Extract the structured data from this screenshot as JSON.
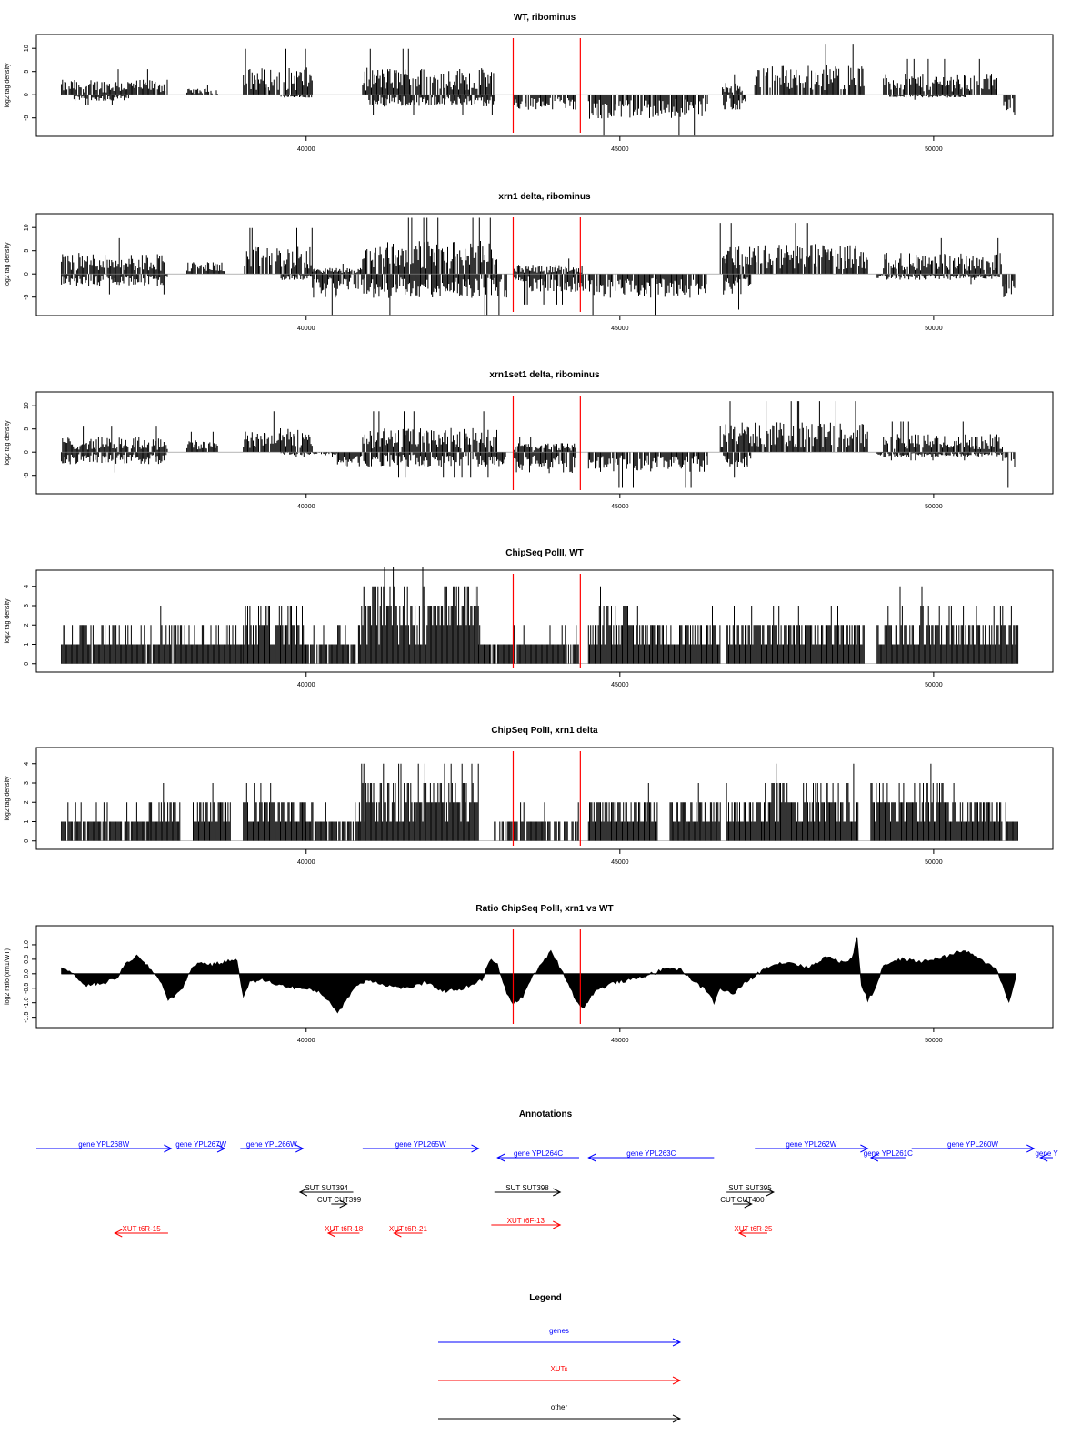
{
  "chart_data": [
    {
      "type": "bar",
      "title": "WT, ribominus",
      "xlabel": "",
      "ylabel": "log2 tag density",
      "xlim": [
        35700,
        51900
      ],
      "ylim": [
        -8,
        12
      ],
      "yticks": [
        -5,
        0,
        5,
        10
      ],
      "xticks": [
        40000,
        45000,
        50000
      ],
      "marker_x": [
        43300,
        44370
      ],
      "series": [
        {
          "name": "plus",
          "segments": [
            {
              "x": [
                36100,
                37800
              ],
              "level": 2.5
            },
            {
              "x": [
                38100,
                38600
              ],
              "level": 1.0
            },
            {
              "x": [
                39000,
                40100
              ],
              "level": 4.5
            },
            {
              "x": [
                40900,
                43000
              ],
              "level": 4.5
            },
            {
              "x": [
                46600,
                46950
              ],
              "level": 2.0
            },
            {
              "x": [
                47150,
                48900
              ],
              "level": 5.0
            },
            {
              "x": [
                49200,
                51050
              ],
              "level": 3.5
            }
          ]
        },
        {
          "name": "minus",
          "segments": [
            {
              "x": [
                36300,
                37200
              ],
              "level": -1.0
            },
            {
              "x": [
                39600,
                40100
              ],
              "level": -0.5
            },
            {
              "x": [
                41000,
                43000
              ],
              "level": -2.0
            },
            {
              "x": [
                43300,
                44300
              ],
              "level": -2.5
            },
            {
              "x": [
                44500,
                46400
              ],
              "level": -4.0
            },
            {
              "x": [
                46650,
                47000
              ],
              "level": -2.5
            },
            {
              "x": [
                49300,
                50500
              ],
              "level": -0.5
            },
            {
              "x": [
                51100,
                51300
              ],
              "level": -3.5
            }
          ]
        }
      ]
    },
    {
      "type": "bar",
      "title": "xrn1 delta, ribominus",
      "xlabel": "",
      "ylabel": "log2 tag density",
      "xlim": [
        35700,
        51900
      ],
      "ylim": [
        -8,
        12
      ],
      "yticks": [
        -5,
        0,
        5,
        10
      ],
      "xticks": [
        40000,
        45000,
        50000
      ],
      "marker_x": [
        43300,
        44370
      ],
      "series": [
        {
          "name": "plus",
          "segments": [
            {
              "x": [
                36100,
                37750
              ],
              "level": 3.5
            },
            {
              "x": [
                38100,
                38700
              ],
              "level": 2.0
            },
            {
              "x": [
                39000,
                40100
              ],
              "level": 4.5
            },
            {
              "x": [
                40100,
                40900
              ],
              "level": 1.0
            },
            {
              "x": [
                40900,
                43050
              ],
              "level": 5.5
            },
            {
              "x": [
                43300,
                44400
              ],
              "level": 1.5
            },
            {
              "x": [
                46600,
                48950
              ],
              "level": 5.0
            },
            {
              "x": [
                49200,
                51100
              ],
              "level": 3.5
            }
          ]
        },
        {
          "name": "minus",
          "segments": [
            {
              "x": [
                36100,
                37800
              ],
              "level": -2.0
            },
            {
              "x": [
                39600,
                40100
              ],
              "level": -1.0
            },
            {
              "x": [
                40100,
                43200
              ],
              "level": -4.0
            },
            {
              "x": [
                43300,
                44450
              ],
              "level": -3.0
            },
            {
              "x": [
                44500,
                46400
              ],
              "level": -4.0
            },
            {
              "x": [
                46650,
                47100
              ],
              "level": -3.5
            },
            {
              "x": [
                49100,
                51050
              ],
              "level": -1.0
            },
            {
              "x": [
                51100,
                51300
              ],
              "level": -4.0
            }
          ]
        }
      ]
    },
    {
      "type": "bar",
      "title": "xrn1set1 delta, ribominus",
      "xlabel": "",
      "ylabel": "log2 tag density",
      "xlim": [
        35700,
        51900
      ],
      "ylim": [
        -8,
        12
      ],
      "yticks": [
        -5,
        0,
        5,
        10
      ],
      "xticks": [
        40000,
        45000,
        50000
      ],
      "marker_x": [
        43300,
        44370
      ],
      "series": [
        {
          "name": "plus",
          "segments": [
            {
              "x": [
                36100,
                37800
              ],
              "level": 2.5
            },
            {
              "x": [
                38100,
                38600
              ],
              "level": 2.0
            },
            {
              "x": [
                39000,
                40100
              ],
              "level": 4.0
            },
            {
              "x": [
                40900,
                43050
              ],
              "level": 4.0
            },
            {
              "x": [
                43300,
                44300
              ],
              "level": 1.5
            },
            {
              "x": [
                46600,
                48950
              ],
              "level": 5.0
            },
            {
              "x": [
                49200,
                51100
              ],
              "level": 3.0
            }
          ]
        },
        {
          "name": "minus",
          "segments": [
            {
              "x": [
                36100,
                37800
              ],
              "level": -2.0
            },
            {
              "x": [
                39600,
                40500
              ],
              "level": -0.5
            },
            {
              "x": [
                40500,
                43200
              ],
              "level": -2.5
            },
            {
              "x": [
                43300,
                44300
              ],
              "level": -3.5
            },
            {
              "x": [
                44500,
                46400
              ],
              "level": -3.5
            },
            {
              "x": [
                46650,
                47100
              ],
              "level": -2.5
            },
            {
              "x": [
                49100,
                51100
              ],
              "level": -0.8
            },
            {
              "x": [
                51100,
                51300
              ],
              "level": -3.5
            }
          ]
        }
      ]
    },
    {
      "type": "bar",
      "title": "ChipSeq PolII, WT",
      "xlabel": "",
      "ylabel": "log2 tag density",
      "xlim": [
        35700,
        51900
      ],
      "ylim": [
        -0.2,
        4.6
      ],
      "yticks": [
        0,
        1,
        2,
        3,
        4
      ],
      "xticks": [
        40000,
        45000,
        50000
      ],
      "marker_x": [
        43300,
        44370
      ],
      "series": [
        {
          "name": "signal",
          "segments": [
            {
              "x": [
                36100,
                39000
              ],
              "level": 1.4
            },
            {
              "x": [
                39000,
                40000
              ],
              "level": 2.3
            },
            {
              "x": [
                40000,
                40850
              ],
              "level": 1.0
            },
            {
              "x": [
                40850,
                42750
              ],
              "level": 3.4
            },
            {
              "x": [
                42750,
                43000
              ],
              "level": 1.2
            },
            {
              "x": [
                43000,
                44350
              ],
              "level": 1.2
            },
            {
              "x": [
                44500,
                45500
              ],
              "level": 2.3
            },
            {
              "x": [
                45500,
                46600
              ],
              "level": 1.8
            },
            {
              "x": [
                46700,
                48900
              ],
              "level": 2.0
            },
            {
              "x": [
                49100,
                51350
              ],
              "level": 2.1
            }
          ]
        }
      ]
    },
    {
      "type": "bar",
      "title": "ChipSeq PolII, xrn1 delta",
      "xlabel": "",
      "ylabel": "log2 tag density",
      "xlim": [
        35700,
        51900
      ],
      "ylim": [
        -0.2,
        4.6
      ],
      "yticks": [
        0,
        1,
        2,
        3,
        4
      ],
      "xticks": [
        40000,
        45000,
        50000
      ],
      "marker_x": [
        43300,
        44370
      ],
      "series": [
        {
          "name": "signal",
          "segments": [
            {
              "x": [
                36100,
                37500
              ],
              "level": 1.0
            },
            {
              "x": [
                37500,
                38000
              ],
              "level": 1.6
            },
            {
              "x": [
                38200,
                38800
              ],
              "level": 1.7
            },
            {
              "x": [
                39000,
                40000
              ],
              "level": 2.0
            },
            {
              "x": [
                40000,
                40850
              ],
              "level": 1.0
            },
            {
              "x": [
                40850,
                42750
              ],
              "level": 3.0
            },
            {
              "x": [
                43000,
                44350
              ],
              "level": 0.7
            },
            {
              "x": [
                44500,
                45600
              ],
              "level": 2.0
            },
            {
              "x": [
                45800,
                46600
              ],
              "level": 2.0
            },
            {
              "x": [
                46700,
                47300
              ],
              "level": 1.6
            },
            {
              "x": [
                47300,
                48800
              ],
              "level": 2.3
            },
            {
              "x": [
                49000,
                50200
              ],
              "level": 2.4
            },
            {
              "x": [
                50200,
                51100
              ],
              "level": 1.8
            },
            {
              "x": [
                51150,
                51350
              ],
              "level": 1.2
            }
          ]
        }
      ]
    },
    {
      "type": "area",
      "title": "Ratio ChipSeq PolII, xrn1 vs WT",
      "xlabel": "",
      "ylabel": "log2 ratio (xrn1/WT)",
      "xlim": [
        35700,
        51900
      ],
      "ylim": [
        -1.7,
        1.5
      ],
      "yticks": [
        -1.5,
        -1.0,
        -0.5,
        0.0,
        0.5,
        1.0
      ],
      "ytick_labels": [
        "-1.5",
        "-1.0",
        "-0.5",
        "0.0",
        "0.5",
        "1.0"
      ],
      "xticks": [
        40000,
        45000,
        50000
      ],
      "marker_x": [
        43300,
        44370
      ],
      "series": [
        {
          "name": "ratio",
          "x": [
            36100,
            36200,
            36500,
            36800,
            37000,
            37150,
            37300,
            37500,
            37700,
            37800,
            38000,
            38150,
            38300,
            38500,
            38700,
            38900,
            39000,
            39100,
            39300,
            39600,
            39900,
            40200,
            40400,
            40500,
            40600,
            40800,
            41000,
            41300,
            41600,
            41900,
            42200,
            42500,
            42800,
            42950,
            43050,
            43200,
            43300,
            43450,
            43600,
            43750,
            43900,
            44000,
            44150,
            44300,
            44400,
            44600,
            44900,
            45200,
            45500,
            45800,
            46000,
            46200,
            46400,
            46500,
            46600,
            46800,
            47000,
            47200,
            47400,
            47700,
            48000,
            48300,
            48500,
            48700,
            48780,
            48850,
            48950,
            49050,
            49200,
            49500,
            49800,
            50200,
            50500,
            50800,
            51000,
            51100,
            51200,
            51300
          ],
          "y": [
            0.2,
            0.1,
            -0.4,
            -0.3,
            -0.1,
            0.4,
            0.6,
            0.2,
            -0.3,
            -0.9,
            -0.6,
            0.1,
            0.4,
            0.3,
            0.4,
            0.5,
            -0.8,
            -0.3,
            -0.2,
            -0.4,
            -0.5,
            -0.6,
            -1.0,
            -1.4,
            -1.0,
            -0.4,
            -0.2,
            -0.4,
            -0.5,
            -0.3,
            -0.6,
            -0.5,
            -0.2,
            0.5,
            0.3,
            -0.7,
            -1.0,
            -0.8,
            -0.1,
            0.3,
            0.8,
            0.4,
            -0.2,
            -0.9,
            -1.2,
            -0.6,
            -0.3,
            -0.2,
            0.0,
            0.2,
            0.1,
            -0.3,
            -0.6,
            -1.0,
            -0.5,
            -0.7,
            -0.3,
            0.0,
            0.3,
            0.4,
            0.2,
            0.6,
            0.4,
            0.5,
            1.3,
            -0.4,
            -0.9,
            -0.6,
            0.3,
            0.5,
            0.4,
            0.6,
            0.8,
            0.4,
            0.2,
            -0.4,
            -1.0,
            -0.2
          ]
        }
      ]
    }
  ],
  "annotations": {
    "title": "Annotations",
    "xlim": [
      35700,
      51900
    ],
    "genes": [
      {
        "label": "gene YPL268W",
        "x": [
          35700,
          37850
        ],
        "dir": "right",
        "row": 0
      },
      {
        "label": "gene YPL267W",
        "x": [
          37950,
          38700
        ],
        "dir": "right",
        "row": 0
      },
      {
        "label": "gene YPL266W",
        "x": [
          38950,
          39950
        ],
        "dir": "right",
        "row": 0
      },
      {
        "label": "gene YPL265W",
        "x": [
          40900,
          42750
        ],
        "dir": "right",
        "row": 0
      },
      {
        "label": "gene YPL264C",
        "x": [
          43050,
          44350
        ],
        "dir": "left",
        "row": 1
      },
      {
        "label": "gene YPL263C",
        "x": [
          44500,
          46500
        ],
        "dir": "left",
        "row": 1
      },
      {
        "label": "gene YPL262W",
        "x": [
          47150,
          48950
        ],
        "dir": "right",
        "row": 0
      },
      {
        "label": "gene YPL261C",
        "x": [
          49000,
          49550
        ],
        "dir": "left",
        "row": 1
      },
      {
        "label": "gene YPL260W",
        "x": [
          49650,
          51600
        ],
        "dir": "right",
        "row": 0
      },
      {
        "label": "gene Y",
        "x": [
          51700,
          51900
        ],
        "dir": "left",
        "row": 1
      }
    ],
    "other": [
      {
        "label": "SUT SUT394",
        "x": [
          39900,
          40750
        ],
        "dir": "left",
        "row": 0
      },
      {
        "label": "CUT CUT399",
        "x": [
          40400,
          40650
        ],
        "dir": "right",
        "row": 1
      },
      {
        "label": "SUT SUT398",
        "x": [
          43000,
          44050
        ],
        "dir": "right",
        "row": 0
      },
      {
        "label": "SUT SUT395",
        "x": [
          46700,
          47450
        ],
        "dir": "right",
        "row": 0
      },
      {
        "label": "CUT CUT400",
        "x": [
          46800,
          47100
        ],
        "dir": "right",
        "row": 1
      }
    ],
    "xuts": [
      {
        "label": "XUT t6R-15",
        "x": [
          36950,
          37800
        ],
        "dir": "left"
      },
      {
        "label": "XUT t6R-18",
        "x": [
          40350,
          40850
        ],
        "dir": "left"
      },
      {
        "label": "XUT t6R-21",
        "x": [
          41400,
          41850
        ],
        "dir": "left"
      },
      {
        "label": "XUT t6F-13",
        "x": [
          42950,
          44050
        ],
        "dir": "right"
      },
      {
        "label": "XUT t6R-25",
        "x": [
          46900,
          47350
        ],
        "dir": "left"
      }
    ]
  },
  "legend": {
    "title": "Legend",
    "items": [
      {
        "label": "genes",
        "color": "#0000ff"
      },
      {
        "label": "XUTs",
        "color": "#ff0000"
      },
      {
        "label": "other",
        "color": "#000000"
      }
    ]
  },
  "colors": {
    "gene": "#0000ff",
    "xut": "#ff0000",
    "other": "#000000",
    "marker": "#ff0000",
    "bars": "#000000"
  }
}
